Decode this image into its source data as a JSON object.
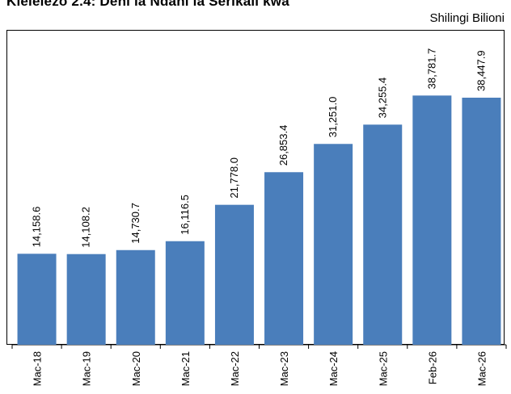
{
  "header": {
    "title": "Kielelezo 2.4: Deni la Ndani la Serikali kwa",
    "unit": "Shilingi Bilioni"
  },
  "colors": {
    "bar": "#4A7EBB",
    "axis": "#000000"
  },
  "chart_data": {
    "type": "bar",
    "title": "Kielelezo 2.4: Deni la Ndani la Serikali kwa",
    "xlabel": "",
    "ylabel": "",
    "unit": "Shilingi Bilioni",
    "categories": [
      "Mac-18",
      "Mac-19",
      "Mac-20",
      "Mac-21",
      "Mac-22",
      "Mac-23",
      "Mac-24",
      "Mac-25",
      "Feb-26",
      "Mac-26"
    ],
    "values": [
      14158.6,
      14108.2,
      14730.7,
      16116.5,
      21778.0,
      26853.4,
      31251.0,
      34255.4,
      38781.7,
      38447.9
    ],
    "value_labels": [
      "14,158.6",
      "14,108.2",
      "14,730.7",
      "16,116.5",
      "21,778.0",
      "26,853.4",
      "31,251.0",
      "34,255.4",
      "38,781.7",
      "38,447.9"
    ],
    "ylim": [
      0,
      49000
    ],
    "grid": false,
    "legend": "none"
  }
}
